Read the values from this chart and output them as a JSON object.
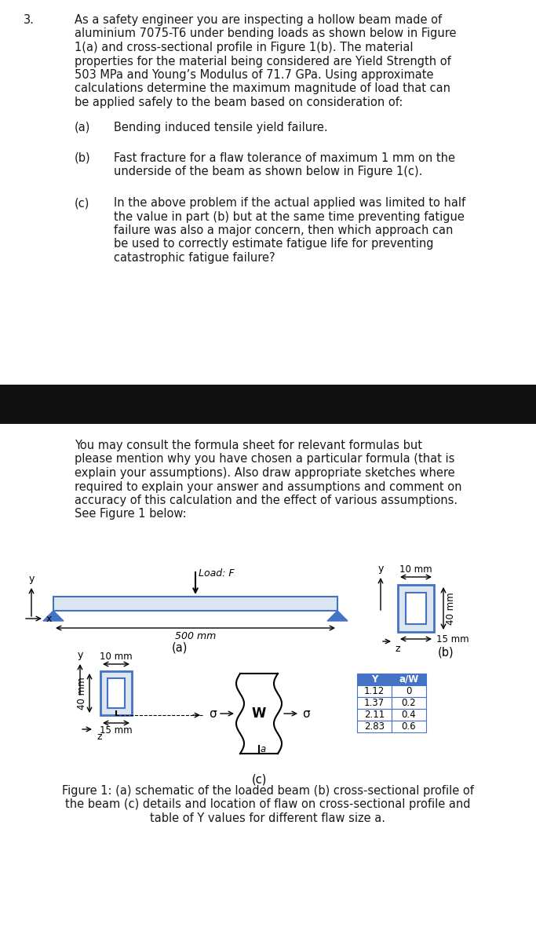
{
  "bg_color": "#ffffff",
  "text_color": "#1a1a1a",
  "question_number": "3.",
  "main_text_line1": "As a safety engineer you are inspecting a hollow beam made of",
  "main_text_line2": "aluminium 7075-T6 under bending loads as shown below in Figure",
  "main_text_line3": "1(a) and cross-sectional profile in Figure 1(b). The material",
  "main_text_line4": "properties for the material being considered are Yield Strength of",
  "main_text_line5": "503 MPa and Young’s Modulus of 71.7 GPa. Using approximate",
  "main_text_line6": "calculations determine the maximum magnitude of load that can",
  "main_text_line7": "be applied safely to the beam based on consideration of:",
  "sub_a_label": "(a)",
  "sub_a_text": "Bending induced tensile yield failure.",
  "sub_b_label": "(b)",
  "sub_b_text_1": "Fast fracture for a flaw tolerance of maximum 1 mm on the",
  "sub_b_text_2": "underside of the beam as shown below in Figure 1(c).",
  "sub_c_label": "(c)",
  "sub_c_text_1": "In the above problem if the actual applied was limited to half",
  "sub_c_text_2": "the value in part (b) but at the same time preventing fatigue",
  "sub_c_text_3": "failure was also a major concern, then which approach can",
  "sub_c_text_4": "be used to correctly estimate fatigue life for preventing",
  "sub_c_text_5": "catastrophic fatigue failure?",
  "cont_line1": "You may consult the formula sheet for relevant formulas but",
  "cont_line2": "please mention why you have chosen a particular formula (that is",
  "cont_line3": "explain your assumptions). Also draw appropriate sketches where",
  "cont_line4": "required to explain your answer and assumptions and comment on",
  "cont_line5": "accuracy of this calculation and the effect of various assumptions.",
  "cont_line6": "See Figure 1 below:",
  "black_bar_color": "#111111",
  "beam_edge_color": "#4472c4",
  "beam_fill": "#dce6f1",
  "cs_edge_color": "#4472c4",
  "cs_fill": "#dce6f1",
  "table_hdr_bg": "#4472c4",
  "table_hdr_fg": "#ffffff",
  "table_border": "#4472c4",
  "fig_caption_1": "Figure 1: (a) schematic of the loaded beam (b) cross-sectional profile of",
  "fig_caption_2": "the beam (c) details and location of flaw on cross-sectional profile and",
  "fig_caption_3": "table of Y values for different flaw size a.",
  "table_Y": [
    "1.12",
    "1.37",
    "2.11",
    "2.83"
  ],
  "table_aw": [
    "0",
    "0.2",
    "0.4",
    "0.6"
  ]
}
